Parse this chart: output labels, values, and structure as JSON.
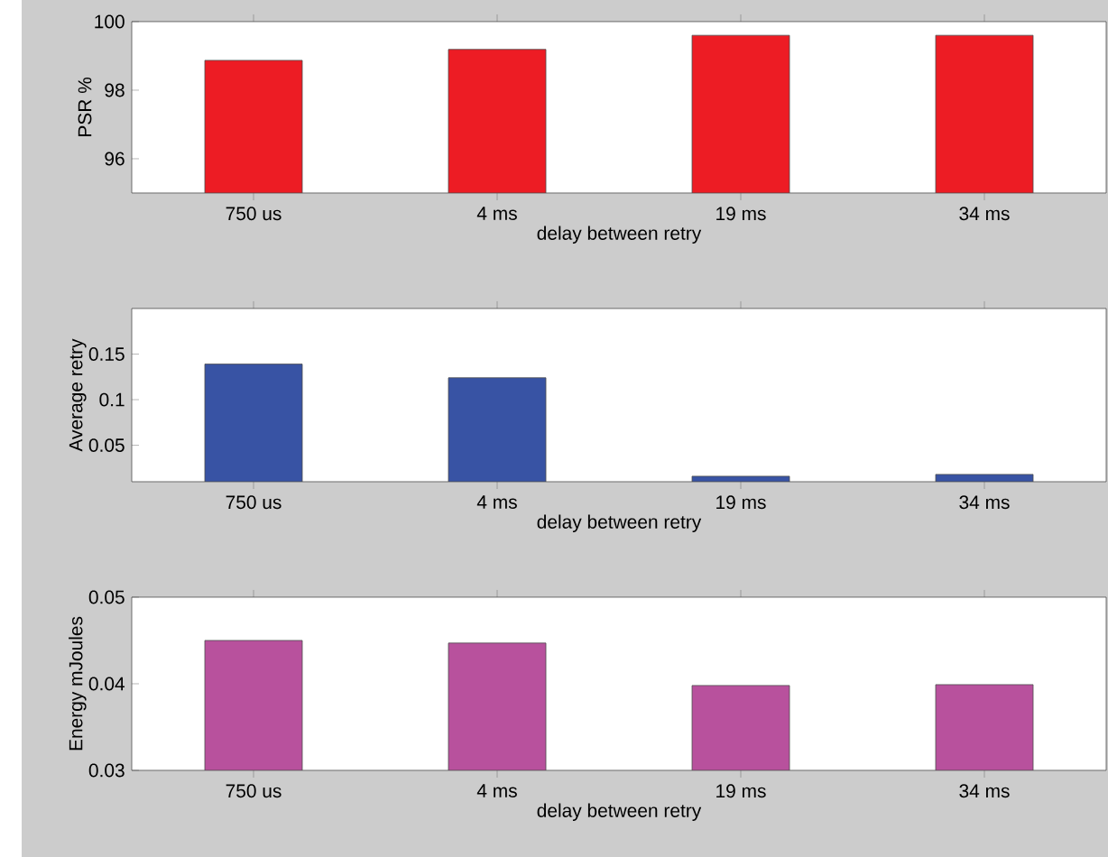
{
  "chart_data": [
    {
      "type": "bar",
      "categories": [
        "750 us",
        "4 ms",
        "19 ms",
        "34 ms"
      ],
      "values": [
        98.87,
        99.19,
        99.6,
        99.6
      ],
      "color": "#ed1c24",
      "xlabel": "delay between retry",
      "ylabel": "PSR %",
      "ylim": [
        95,
        100
      ],
      "yticks": [
        96,
        98,
        100
      ]
    },
    {
      "type": "bar",
      "categories": [
        "750 us",
        "4 ms",
        "19 ms",
        "34 ms"
      ],
      "values": [
        0.139,
        0.124,
        0.016,
        0.018
      ],
      "color": "#3853a4",
      "xlabel": "delay between retry",
      "ylabel": "Average retry",
      "ylim": [
        0.01,
        0.2
      ],
      "yticks": [
        0.05,
        0.1,
        0.15
      ]
    },
    {
      "type": "bar",
      "categories": [
        "750 us",
        "4 ms",
        "19 ms",
        "34 ms"
      ],
      "values": [
        0.045,
        0.0447,
        0.0398,
        0.0399
      ],
      "color": "#b8519d",
      "xlabel": "delay between retry",
      "ylabel": "Energy mJoules",
      "ylim": [
        0.03,
        0.05
      ],
      "yticks": [
        0.03,
        0.04,
        0.05
      ]
    }
  ]
}
